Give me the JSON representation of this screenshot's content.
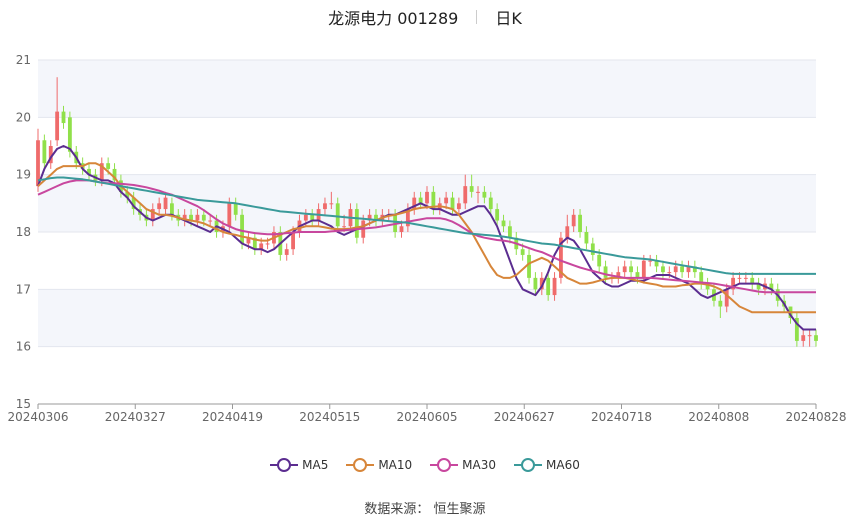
{
  "header": {
    "name": "龙源电力 001289",
    "period": "日K"
  },
  "source": "数据来源： 恒生聚源",
  "chart_data": {
    "type": "candlestick",
    "ylim": [
      15,
      21
    ],
    "yticks": [
      15,
      16,
      17,
      18,
      19,
      20,
      21
    ],
    "xticks": [
      "20240306",
      "20240327",
      "20240419",
      "20240515",
      "20240605",
      "20240627",
      "20240718",
      "20240808",
      "20240828"
    ],
    "grid": true,
    "legend_position": "bottom",
    "candles": {
      "open": [
        18.8,
        19.6,
        19.2,
        19.6,
        20.1,
        20.0,
        19.4,
        19.2,
        19.1,
        19.0,
        18.9,
        19.2,
        19.1,
        18.9,
        18.7,
        18.6,
        18.4,
        18.3,
        18.2,
        18.4,
        18.4,
        18.5,
        18.3,
        18.2,
        18.3,
        18.2,
        18.3,
        18.2,
        18.2,
        18.0,
        18.1,
        18.5,
        18.3,
        17.8,
        17.9,
        17.7,
        17.8,
        17.8,
        18.0,
        17.6,
        17.7,
        18.0,
        18.2,
        18.3,
        18.2,
        18.4,
        18.5,
        18.5,
        18.1,
        18.1,
        18.4,
        17.9,
        18.2,
        18.3,
        18.2,
        18.3,
        18.3,
        18.0,
        18.1,
        18.4,
        18.6,
        18.5,
        18.7,
        18.4,
        18.5,
        18.6,
        18.4,
        18.5,
        18.8,
        18.7,
        18.7,
        18.6,
        18.4,
        18.2,
        18.1,
        17.9,
        17.7,
        17.6,
        17.2,
        17.0,
        17.2,
        16.9,
        17.2,
        17.9,
        18.1,
        18.3,
        18.0,
        17.8,
        17.6,
        17.4,
        17.2,
        17.2,
        17.3,
        17.4,
        17.3,
        17.2,
        17.5,
        17.5,
        17.4,
        17.3,
        17.3,
        17.4,
        17.3,
        17.4,
        17.3,
        17.1,
        17.0,
        16.8,
        16.7,
        17.0,
        17.2,
        17.2,
        17.2,
        17.1,
        17.0,
        17.1,
        17.0,
        16.8,
        16.7,
        16.5,
        16.1,
        16.2,
        16.2
      ],
      "close": [
        19.6,
        19.2,
        19.5,
        20.1,
        19.9,
        19.4,
        19.2,
        19.1,
        19.0,
        18.9,
        19.2,
        19.1,
        18.9,
        18.7,
        18.6,
        18.4,
        18.3,
        18.2,
        18.4,
        18.5,
        18.6,
        18.3,
        18.2,
        18.3,
        18.2,
        18.3,
        18.2,
        18.2,
        18.0,
        18.1,
        18.5,
        18.3,
        17.8,
        17.9,
        17.7,
        17.8,
        17.8,
        18.0,
        17.6,
        17.7,
        18.0,
        18.2,
        18.3,
        18.2,
        18.4,
        18.5,
        18.5,
        18.1,
        18.1,
        18.4,
        17.9,
        18.2,
        18.3,
        18.2,
        18.3,
        18.3,
        18.0,
        18.1,
        18.4,
        18.6,
        18.5,
        18.7,
        18.4,
        18.5,
        18.6,
        18.4,
        18.5,
        18.8,
        18.7,
        18.7,
        18.6,
        18.4,
        18.2,
        18.1,
        17.9,
        17.7,
        17.6,
        17.2,
        17.0,
        17.2,
        16.9,
        17.2,
        17.9,
        18.1,
        18.3,
        18.0,
        17.8,
        17.6,
        17.4,
        17.2,
        17.2,
        17.3,
        17.4,
        17.3,
        17.2,
        17.5,
        17.5,
        17.4,
        17.3,
        17.3,
        17.4,
        17.3,
        17.4,
        17.3,
        17.1,
        17.0,
        16.8,
        16.7,
        17.0,
        17.2,
        17.2,
        17.2,
        17.1,
        17.0,
        17.1,
        17.0,
        16.8,
        16.7,
        16.5,
        16.1,
        16.2,
        16.2,
        16.1
      ],
      "high": [
        19.8,
        19.7,
        19.6,
        20.7,
        20.2,
        20.1,
        19.5,
        19.3,
        19.2,
        19.1,
        19.3,
        19.3,
        19.2,
        19.0,
        18.8,
        18.7,
        18.5,
        18.4,
        18.5,
        18.6,
        18.7,
        18.6,
        18.4,
        18.4,
        18.4,
        18.4,
        18.4,
        18.3,
        18.3,
        18.2,
        18.6,
        18.6,
        18.4,
        18.0,
        18.0,
        17.9,
        17.9,
        18.1,
        18.1,
        17.8,
        18.1,
        18.3,
        18.4,
        18.4,
        18.5,
        18.6,
        18.7,
        18.6,
        18.3,
        18.5,
        18.5,
        18.3,
        18.4,
        18.4,
        18.4,
        18.4,
        18.4,
        18.2,
        18.5,
        18.7,
        18.7,
        18.8,
        18.8,
        18.6,
        18.7,
        18.7,
        18.6,
        19.0,
        19.0,
        18.8,
        18.8,
        18.7,
        18.5,
        18.3,
        18.2,
        18.0,
        17.8,
        17.7,
        17.3,
        17.3,
        17.3,
        17.3,
        18.0,
        18.3,
        18.4,
        18.4,
        18.1,
        17.9,
        17.7,
        17.5,
        17.3,
        17.4,
        17.5,
        17.5,
        17.4,
        17.6,
        17.6,
        17.6,
        17.5,
        17.4,
        17.5,
        17.5,
        17.5,
        17.5,
        17.4,
        17.2,
        17.1,
        16.9,
        17.1,
        17.3,
        17.3,
        17.3,
        17.3,
        17.2,
        17.2,
        17.2,
        17.1,
        16.9,
        16.7,
        16.6,
        16.3,
        16.3,
        16.3
      ],
      "low": [
        18.7,
        19.1,
        19.1,
        19.5,
        19.8,
        19.3,
        19.1,
        19.0,
        18.9,
        18.8,
        18.8,
        19.0,
        18.8,
        18.6,
        18.5,
        18.3,
        18.2,
        18.1,
        18.1,
        18.3,
        18.3,
        18.2,
        18.1,
        18.1,
        18.1,
        18.1,
        18.1,
        18.1,
        17.9,
        17.9,
        18.0,
        18.2,
        17.7,
        17.7,
        17.6,
        17.6,
        17.7,
        17.7,
        17.5,
        17.5,
        17.6,
        17.9,
        18.1,
        18.1,
        18.1,
        18.3,
        18.4,
        18.0,
        18.0,
        18.0,
        17.8,
        17.8,
        18.1,
        18.1,
        18.1,
        18.2,
        17.9,
        17.9,
        18.0,
        18.3,
        18.4,
        18.4,
        18.3,
        18.3,
        18.4,
        18.3,
        18.3,
        18.4,
        18.6,
        18.5,
        18.5,
        18.3,
        18.1,
        18.0,
        17.8,
        17.6,
        17.5,
        17.1,
        16.9,
        16.9,
        16.8,
        16.8,
        17.1,
        17.8,
        18.0,
        17.9,
        17.7,
        17.5,
        17.3,
        17.1,
        17.1,
        17.1,
        17.2,
        17.2,
        17.1,
        17.1,
        17.4,
        17.3,
        17.2,
        17.2,
        17.2,
        17.2,
        17.2,
        17.2,
        17.0,
        16.9,
        16.7,
        16.5,
        16.6,
        16.9,
        17.1,
        17.1,
        17.0,
        16.9,
        16.9,
        16.9,
        16.7,
        16.6,
        16.4,
        16.0,
        16.0,
        16.0,
        16.0
      ]
    },
    "series": [
      {
        "name": "MA5",
        "color": "#5b2d90",
        "values": [
          18.8,
          19.1,
          19.3,
          19.45,
          19.5,
          19.45,
          19.3,
          19.1,
          19.0,
          18.95,
          18.9,
          18.9,
          18.85,
          18.7,
          18.6,
          18.45,
          18.35,
          18.25,
          18.2,
          18.25,
          18.3,
          18.3,
          18.25,
          18.2,
          18.15,
          18.1,
          18.05,
          18.0,
          18.1,
          18.05,
          18.0,
          17.9,
          17.8,
          17.75,
          17.7,
          17.7,
          17.65,
          17.7,
          17.8,
          17.9,
          18.0,
          18.1,
          18.15,
          18.2,
          18.2,
          18.15,
          18.1,
          18.0,
          17.95,
          18.0,
          18.05,
          18.1,
          18.15,
          18.2,
          18.25,
          18.3,
          18.3,
          18.35,
          18.4,
          18.45,
          18.5,
          18.45,
          18.4,
          18.4,
          18.35,
          18.3,
          18.3,
          18.35,
          18.4,
          18.45,
          18.45,
          18.3,
          18.1,
          17.8,
          17.5,
          17.2,
          17.0,
          16.95,
          16.9,
          17.05,
          17.3,
          17.6,
          17.8,
          17.9,
          17.85,
          17.7,
          17.5,
          17.3,
          17.2,
          17.1,
          17.05,
          17.05,
          17.1,
          17.15,
          17.15,
          17.15,
          17.2,
          17.25,
          17.25,
          17.25,
          17.2,
          17.15,
          17.1,
          17.0,
          16.9,
          16.85,
          16.9,
          16.95,
          17.0,
          17.05,
          17.1,
          17.1,
          17.1,
          17.1,
          17.05,
          17.0,
          16.9,
          16.75,
          16.55,
          16.4,
          16.3,
          16.3,
          16.3
        ]
      },
      {
        "name": "MA10",
        "color": "#d7863a",
        "values": [
          18.8,
          18.9,
          19.0,
          19.1,
          19.15,
          19.15,
          19.15,
          19.15,
          19.2,
          19.2,
          19.15,
          19.05,
          18.95,
          18.8,
          18.7,
          18.6,
          18.5,
          18.4,
          18.35,
          18.3,
          18.3,
          18.28,
          18.25,
          18.22,
          18.2,
          18.18,
          18.15,
          18.1,
          18.05,
          18.0,
          17.97,
          17.95,
          17.92,
          17.9,
          17.87,
          17.85,
          17.85,
          17.9,
          17.95,
          18.0,
          18.05,
          18.07,
          18.1,
          18.1,
          18.1,
          18.08,
          18.06,
          18.05,
          18.05,
          18.06,
          18.08,
          18.1,
          18.15,
          18.2,
          18.25,
          18.28,
          18.3,
          18.33,
          18.36,
          18.4,
          18.42,
          18.43,
          18.44,
          18.45,
          18.43,
          18.4,
          18.3,
          18.15,
          18.0,
          17.8,
          17.6,
          17.4,
          17.25,
          17.2,
          17.2,
          17.25,
          17.35,
          17.45,
          17.5,
          17.55,
          17.5,
          17.4,
          17.3,
          17.2,
          17.15,
          17.1,
          17.1,
          17.12,
          17.15,
          17.18,
          17.2,
          17.2,
          17.2,
          17.18,
          17.15,
          17.12,
          17.1,
          17.08,
          17.05,
          17.05,
          17.05,
          17.07,
          17.08,
          17.1,
          17.1,
          17.08,
          17.05,
          17.0,
          16.9,
          16.8,
          16.7,
          16.65,
          16.6,
          16.6,
          16.6,
          16.6,
          16.6,
          16.6,
          16.6,
          16.6,
          16.6,
          16.6,
          16.6
        ]
      },
      {
        "name": "MA30",
        "color": "#c8479e",
        "values": [
          18.65,
          18.7,
          18.75,
          18.8,
          18.85,
          18.88,
          18.9,
          18.9,
          18.9,
          18.88,
          18.86,
          18.85,
          18.85,
          18.84,
          18.83,
          18.82,
          18.8,
          18.78,
          18.75,
          18.72,
          18.68,
          18.65,
          18.6,
          18.55,
          18.5,
          18.45,
          18.38,
          18.3,
          18.22,
          18.15,
          18.1,
          18.05,
          18.02,
          18.0,
          17.98,
          17.97,
          17.96,
          17.96,
          17.97,
          17.98,
          17.99,
          18.0,
          18.0,
          18.0,
          18.0,
          18.0,
          18.01,
          18.02,
          18.03,
          18.04,
          18.05,
          18.06,
          18.07,
          18.08,
          18.1,
          18.12,
          18.14,
          18.16,
          18.18,
          18.2,
          18.22,
          18.24,
          18.24,
          18.24,
          18.22,
          18.18,
          18.12,
          18.05,
          17.98,
          17.93,
          17.9,
          17.88,
          17.86,
          17.85,
          17.83,
          17.8,
          17.76,
          17.72,
          17.68,
          17.65,
          17.6,
          17.55,
          17.5,
          17.46,
          17.42,
          17.38,
          17.35,
          17.32,
          17.29,
          17.26,
          17.24,
          17.22,
          17.2,
          17.2,
          17.2,
          17.2,
          17.2,
          17.19,
          17.18,
          17.17,
          17.16,
          17.15,
          17.14,
          17.13,
          17.12,
          17.11,
          17.1,
          17.08,
          17.06,
          17.04,
          17.02,
          17.0,
          16.98,
          16.96,
          16.95,
          16.95,
          16.95,
          16.95,
          16.95,
          16.95,
          16.95,
          16.95,
          16.95
        ]
      },
      {
        "name": "MA60",
        "color": "#3a9a9a",
        "values": [
          18.9,
          18.92,
          18.94,
          18.95,
          18.95,
          18.94,
          18.93,
          18.92,
          18.9,
          18.88,
          18.86,
          18.84,
          18.82,
          18.8,
          18.78,
          18.76,
          18.74,
          18.72,
          18.7,
          18.68,
          18.66,
          18.64,
          18.62,
          18.6,
          18.58,
          18.56,
          18.55,
          18.54,
          18.53,
          18.52,
          18.51,
          18.5,
          18.48,
          18.46,
          18.44,
          18.42,
          18.4,
          18.38,
          18.36,
          18.35,
          18.34,
          18.33,
          18.32,
          18.31,
          18.3,
          18.29,
          18.28,
          18.27,
          18.26,
          18.25,
          18.24,
          18.23,
          18.22,
          18.21,
          18.2,
          18.19,
          18.18,
          18.17,
          18.16,
          18.14,
          18.12,
          18.1,
          18.08,
          18.06,
          18.04,
          18.02,
          18.0,
          17.98,
          17.97,
          17.96,
          17.95,
          17.94,
          17.93,
          17.92,
          17.9,
          17.88,
          17.86,
          17.84,
          17.82,
          17.8,
          17.79,
          17.78,
          17.76,
          17.74,
          17.72,
          17.7,
          17.68,
          17.66,
          17.64,
          17.62,
          17.6,
          17.58,
          17.56,
          17.55,
          17.54,
          17.53,
          17.52,
          17.5,
          17.48,
          17.46,
          17.44,
          17.42,
          17.4,
          17.38,
          17.36,
          17.34,
          17.32,
          17.3,
          17.28,
          17.27,
          17.27,
          17.27,
          17.27,
          17.27,
          17.27,
          17.27,
          17.27,
          17.27,
          17.27,
          17.27,
          17.27,
          17.27,
          17.27
        ]
      }
    ],
    "up_color": "#ef6b6b",
    "down_color": "#90e04a"
  }
}
